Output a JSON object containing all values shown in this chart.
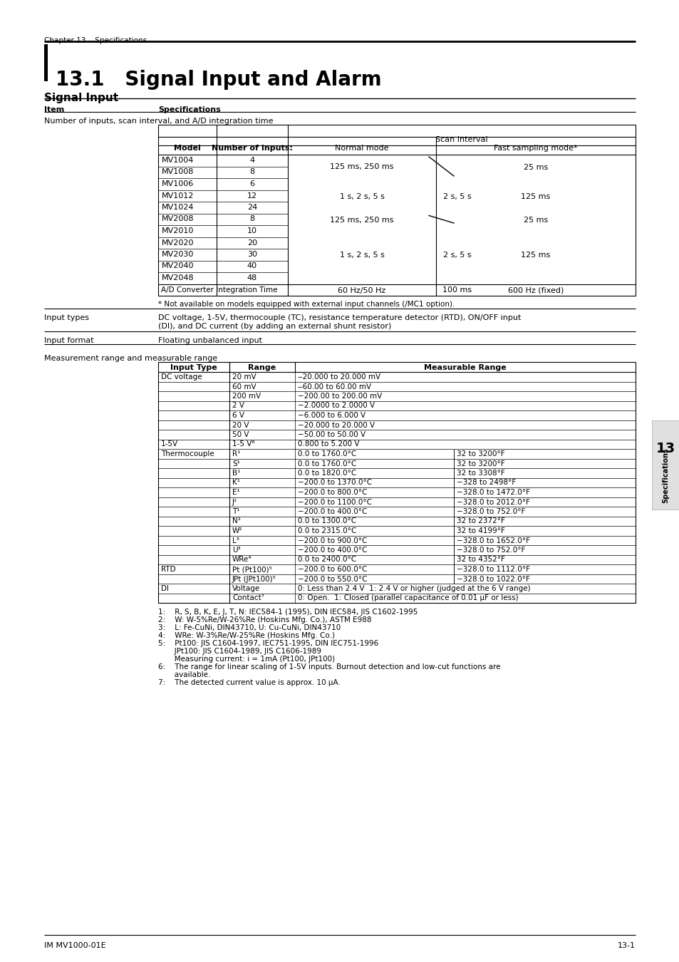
{
  "chapter_label": "Chapter 13    Specifications",
  "section_title": "13.1   Signal Input and Alarm",
  "section_subtitle": "Signal Input",
  "bg_color": "#ffffff",
  "page_number": "13-1",
  "footer_left": "IM MV1000-01E",
  "tab_label": "13",
  "tab_sublabel": "Specifications",
  "scan_models": [
    [
      "MV1004",
      "4"
    ],
    [
      "MV1008",
      "8"
    ],
    [
      "MV1006",
      "6"
    ],
    [
      "MV1012",
      "12"
    ],
    [
      "MV1024",
      "24"
    ],
    [
      "MV2008",
      "8"
    ],
    [
      "MV2010",
      "10"
    ],
    [
      "MV2020",
      "20"
    ],
    [
      "MV2030",
      "30"
    ],
    [
      "MV2040",
      "40"
    ],
    [
      "MV2048",
      "48"
    ]
  ],
  "meas_rows": [
    [
      "DC voltage",
      "20 mV",
      "‒20.000 to 20.000 mV",
      ""
    ],
    [
      "",
      "60 mV",
      "‒60.00 to 60.00 mV",
      ""
    ],
    [
      "",
      "200 mV",
      "−200.00 to 200.00 mV",
      ""
    ],
    [
      "",
      "2 V",
      "−2.0000 to 2.0000 V",
      ""
    ],
    [
      "",
      "6 V",
      "−6.000 to 6.000 V",
      ""
    ],
    [
      "",
      "20 V",
      "−20.000 to 20.000 V",
      ""
    ],
    [
      "",
      "50 V",
      "−50.00 to 50.00 V",
      ""
    ],
    [
      "1-5V",
      "1-5 V⁶",
      "0.800 to 5.200 V",
      ""
    ],
    [
      "Thermocouple",
      "R¹",
      "0.0 to 1760.0°C",
      "32 to 3200°F"
    ],
    [
      "",
      "S¹",
      "0.0 to 1760.0°C",
      "32 to 3200°F"
    ],
    [
      "",
      "B¹",
      "0.0 to 1820.0°C",
      "32 to 3308°F"
    ],
    [
      "",
      "K¹",
      "−200.0 to 1370.0°C",
      "−328 to 2498°F"
    ],
    [
      "",
      "E¹",
      "−200.0 to 800.0°C",
      "−328.0 to 1472.0°F"
    ],
    [
      "",
      "J¹",
      "−200.0 to 1100.0°C",
      "−328.0 to 2012.0°F"
    ],
    [
      "",
      "T¹",
      "−200.0 to 400.0°C",
      "−328.0 to 752.0°F"
    ],
    [
      "",
      "N¹",
      "0.0 to 1300.0°C",
      "32 to 2372°F"
    ],
    [
      "",
      "W²",
      "0.0 to 2315.0°C",
      "32 to 4199°F"
    ],
    [
      "",
      "L³",
      "−200.0 to 900.0°C",
      "−328.0 to 1652.0°F"
    ],
    [
      "",
      "U³",
      "−200.0 to 400.0°C",
      "−328.0 to 752.0°F"
    ],
    [
      "",
      "WRe⁴",
      "0.0 to 2400.0°C",
      "32 to 4352°F"
    ],
    [
      "RTD",
      "Pt (Pt100)⁵",
      "−200.0 to 600.0°C",
      "−328.0 to 1112.0°F"
    ],
    [
      "",
      "JPt (JPt100)⁵",
      "−200.0 to 550.0°C",
      "−328.0 to 1022.0°F"
    ],
    [
      "DI",
      "Voltage",
      "0: Less than 2.4 V  1: 2.4 V or higher (judged at the 6 V range)",
      ""
    ],
    [
      "",
      "Contact⁷",
      "0: Open.  1: Closed (parallel capacitance of 0.01 μF or less)",
      ""
    ]
  ],
  "footnotes": [
    "1:    R, S, B, K, E, J, T, N: IEC584-1 (1995), DIN IEC584, JIS C1602-1995",
    "2:    W: W-5%Re/W-26%Re (Hoskins Mfg. Co.), ASTM E988",
    "3:    L: Fe-CuNi, DIN43710, U: Cu-CuNi, DIN43710",
    "4:    WRe: W-3%Re/W-25%Re (Hoskins Mfg. Co.)",
    "5:    Pt100: JIS C1604-1997, IEC751-1995, DIN IEC751-1996",
    "       JPt100: JIS C1604-1989, JIS C1606-1989",
    "       Measuring current: i = 1mA (Pt100, JPt100)",
    "6:    The range for linear scaling of 1-5V inputs. Burnout detection and low-cut functions are",
    "       available.",
    "7:    The detected current value is approx. 10 μA."
  ]
}
